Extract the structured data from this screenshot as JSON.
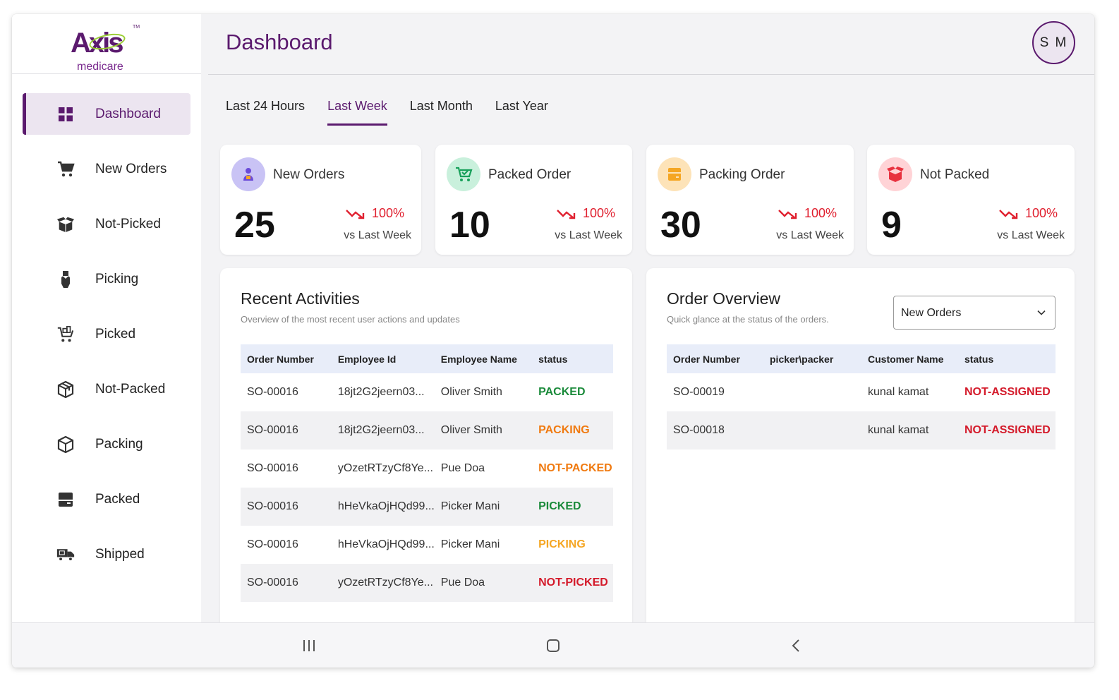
{
  "brand": {
    "name": "Axis",
    "tagline": "medicare",
    "tm": "TM"
  },
  "colors": {
    "primary": "#5b1a6e",
    "down": "#e0202f",
    "packed": "#1a8a3a",
    "packing": "#f07a10",
    "notPicked": "#d41a2a"
  },
  "header": {
    "title": "Dashboard",
    "avatar_initials": "S M"
  },
  "sidebar": {
    "items": [
      {
        "label": "Dashboard",
        "icon": "grid-icon",
        "active": true
      },
      {
        "label": "New Orders",
        "icon": "cart-icon"
      },
      {
        "label": "Not-Picked",
        "icon": "open-box-icon"
      },
      {
        "label": "Picking",
        "icon": "hand-box-icon"
      },
      {
        "label": "Picked",
        "icon": "cart-box-icon"
      },
      {
        "label": "Not-Packed",
        "icon": "box-icon"
      },
      {
        "label": "Packing",
        "icon": "package-icon"
      },
      {
        "label": "Packed",
        "icon": "closed-box-icon"
      },
      {
        "label": "Shipped",
        "icon": "truck-icon"
      }
    ]
  },
  "tabs": [
    {
      "label": "Last 24 Hours"
    },
    {
      "label": "Last Week",
      "active": true
    },
    {
      "label": "Last Month"
    },
    {
      "label": "Last Year"
    }
  ],
  "stats": [
    {
      "title": "New Orders",
      "value": "25",
      "change": "100%",
      "compare": "vs Last Week",
      "icon": "person-box-icon",
      "icon_bg": "#c9c3f5",
      "icon_color": "#6a4ad8"
    },
    {
      "title": "Packed Order",
      "value": "10",
      "change": "100%",
      "compare": "vs Last Week",
      "icon": "cart-check-icon",
      "icon_bg": "#c9f0dc",
      "icon_color": "#18a05a"
    },
    {
      "title": "Packing Order",
      "value": "30",
      "change": "100%",
      "compare": "vs Last Week",
      "icon": "package-icon",
      "icon_bg": "#fde3b8",
      "icon_color": "#f5a623"
    },
    {
      "title": "Not Packed",
      "value": "9",
      "change": "100%",
      "compare": "vs Last Week",
      "icon": "open-box-icon",
      "icon_bg": "#ffd3d6",
      "icon_color": "#e8323f"
    }
  ],
  "recent": {
    "title": "Recent Activities",
    "subtitle": "Overview of the most recent user actions and updates",
    "columns": [
      "Order Number",
      "Employee Id",
      "Employee Name",
      "status"
    ],
    "rows": [
      {
        "order": "SO-00016",
        "emp_id": "18jt2G2jeern03...",
        "name": "Oliver Smith",
        "status": "PACKED",
        "status_color": "#1a8a3a"
      },
      {
        "order": "SO-00016",
        "emp_id": "18jt2G2jeern03...",
        "name": "Oliver Smith",
        "status": "PACKING",
        "status_color": "#f07a10"
      },
      {
        "order": "SO-00016",
        "emp_id": "yOzetRTzyCf8Ye...",
        "name": "Pue Doa",
        "status": "NOT-PACKED",
        "status_color": "#f07a10"
      },
      {
        "order": "SO-00016",
        "emp_id": "hHeVkaOjHQd99...",
        "name": "Picker Mani",
        "status": "PICKED",
        "status_color": "#1a8a3a"
      },
      {
        "order": "SO-00016",
        "emp_id": "hHeVkaOjHQd99...",
        "name": "Picker Mani",
        "status": "PICKING",
        "status_color": "#f5a623"
      },
      {
        "order": "SO-00016",
        "emp_id": "yOzetRTzyCf8Ye...",
        "name": "Pue Doa",
        "status": "NOT-PICKED",
        "status_color": "#d41a2a"
      }
    ]
  },
  "overview": {
    "title": "Order Overview",
    "subtitle": "Quick glance at the status of the orders.",
    "dropdown_value": "New Orders",
    "columns": [
      "Order Number",
      "picker\\packer",
      "Customer Name",
      "status"
    ],
    "rows": [
      {
        "order": "SO-00019",
        "picker": "",
        "customer": "kunal kamat",
        "status": "NOT-ASSIGNED",
        "status_color": "#d41a2a"
      },
      {
        "order": "SO-00018",
        "picker": "",
        "customer": "kunal kamat",
        "status": "NOT-ASSIGNED",
        "status_color": "#d41a2a"
      }
    ]
  },
  "system_nav": {
    "recents": "recents-icon",
    "home": "home-icon",
    "back": "back-icon"
  }
}
